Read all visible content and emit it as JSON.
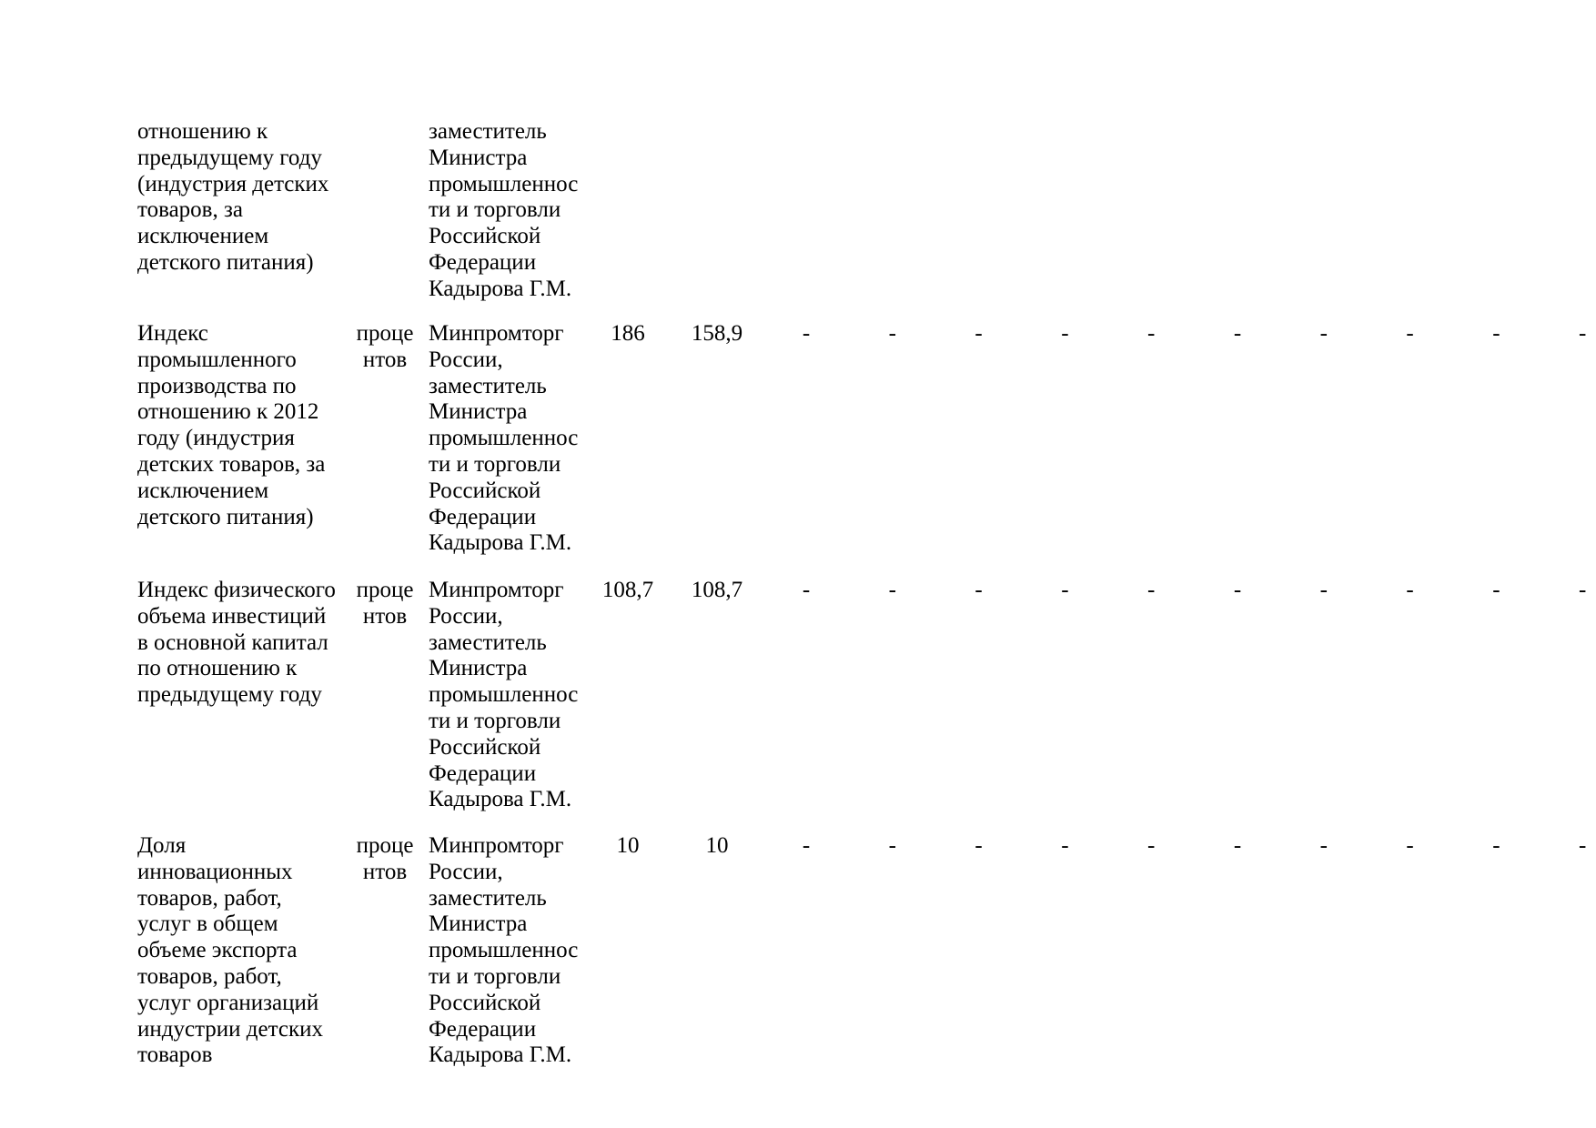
{
  "rows": [
    {
      "name": [
        "отношению к",
        "предыдущему году",
        "(индустрия детских",
        "товаров, за",
        "исключением",
        "детского питания)"
      ],
      "unit": [],
      "responsible": [
        "заместитель",
        "Министра",
        "промышленнос",
        "ти и торговли",
        "Российской",
        "Федерации",
        "Кадырова Г.М."
      ],
      "v1": "",
      "v2": "",
      "dashes": []
    },
    {
      "name": [
        "Индекс",
        "промышленного",
        "производства по",
        "отношению к 2012",
        "году (индустрия",
        "детских товаров, за",
        "исключением",
        "детского питания)"
      ],
      "unit": [
        "проце",
        "нтов"
      ],
      "responsible": [
        "Минпромторг",
        "России,",
        "заместитель",
        "Министра",
        "промышленнос",
        "ти и торговли",
        "Российской",
        "Федерации",
        "Кадырова Г.М."
      ],
      "v1": "186",
      "v2": "158,9",
      "dashes": [
        "-",
        "-",
        "-",
        "-",
        "-",
        "-",
        "-",
        "-",
        "-",
        "-"
      ]
    },
    {
      "name": [
        "Индекс физического",
        "объема инвестиций",
        "в основной капитал",
        "по отношению к",
        "предыдущему году"
      ],
      "unit": [
        "проце",
        "нтов"
      ],
      "responsible": [
        "Минпромторг",
        "России,",
        "заместитель",
        "Министра",
        "промышленнос",
        "ти и торговли",
        "Российской",
        "Федерации",
        "Кадырова Г.М."
      ],
      "v1": "108,7",
      "v2": "108,7",
      "dashes": [
        "-",
        "-",
        "-",
        "-",
        "-",
        "-",
        "-",
        "-",
        "-",
        "-"
      ]
    },
    {
      "name": [
        "Доля",
        "инновационных",
        "товаров, работ,",
        "услуг в общем",
        "объеме экспорта",
        "товаров, работ,",
        "услуг организаций",
        "индустрии детских",
        "товаров"
      ],
      "unit": [
        "проце",
        "нтов"
      ],
      "responsible": [
        "Минпромторг",
        "России,",
        "заместитель",
        "Министра",
        "промышленнос",
        "ти и торговли",
        "Российской",
        "Федерации",
        "Кадырова Г.М."
      ],
      "v1": "10",
      "v2": "10",
      "dashes": [
        "-",
        "-",
        "-",
        "-",
        "-",
        "-",
        "-",
        "-",
        "-",
        "-"
      ]
    }
  ]
}
